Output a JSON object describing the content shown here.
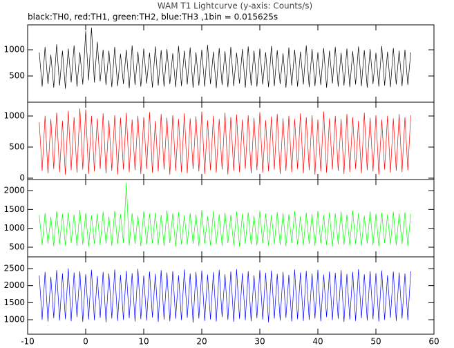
{
  "chart_data": {
    "type": "line",
    "title": "WAM T1 Lightcurve (y-axis: Counts/s)",
    "subtitle": "black:TH0, red:TH1, green:TH2, blue:TH3 ,1bin = 0.015625s",
    "x": [
      -8,
      -7.5,
      -7,
      -6.5,
      -6,
      -5.5,
      -5,
      -4.5,
      -4,
      -3.5,
      -3,
      -2.5,
      -2,
      -1.5,
      -1,
      -0.5,
      0,
      0.5,
      1,
      1.5,
      2,
      2.5,
      3,
      3.5,
      4,
      4.5,
      5,
      5.5,
      6,
      6.5,
      7,
      7.5,
      8,
      8.5,
      9,
      9.5,
      10,
      10.5,
      11,
      11.5,
      12,
      12.5,
      13,
      13.5,
      14,
      14.5,
      15,
      15.5,
      16,
      16.5,
      17,
      17.5,
      18,
      18.5,
      19,
      19.5,
      20,
      20.5,
      21,
      21.5,
      22,
      22.5,
      23,
      23.5,
      24,
      24.5,
      25,
      25.5,
      26,
      26.5,
      27,
      27.5,
      28,
      28.5,
      29,
      29.5,
      30,
      30.5,
      31,
      31.5,
      32,
      32.5,
      33,
      33.5,
      34,
      34.5,
      35,
      35.5,
      36,
      36.5,
      37,
      37.5,
      38,
      38.5,
      39,
      39.5,
      40,
      40.5,
      41,
      41.5,
      42,
      42.5,
      43,
      43.5,
      44,
      44.5,
      45,
      45.5,
      46,
      46.5,
      47,
      47.5,
      48,
      48.5,
      49,
      49.5,
      50,
      50.5,
      51,
      51.5,
      52,
      52.5,
      53,
      53.5,
      54,
      54.5,
      55,
      55.5,
      56
    ],
    "xlim": [
      -10,
      60
    ],
    "xticks": [
      -10,
      0,
      10,
      20,
      30,
      40,
      50,
      60
    ],
    "series": [
      {
        "color": "#000000",
        "ylim": [
          0,
          1475
        ],
        "yticks": [
          500,
          1000
        ],
        "values": [
          950,
          300,
          1050,
          350,
          900,
          280,
          1100,
          320,
          980,
          260,
          1020,
          380,
          1080,
          300,
          950,
          340,
          1350,
          420,
          1420,
          380,
          1150,
          400,
          1000,
          330,
          980,
          290,
          1050,
          310,
          920,
          350,
          1000,
          270,
          1080,
          330,
          960,
          300,
          1020,
          360,
          940,
          280,
          1060,
          320,
          990,
          300,
          1010,
          350,
          930,
          290,
          1070,
          310,
          980,
          340,
          1040,
          280,
          950,
          320,
          1000,
          300,
          1090,
          350,
          960,
          270,
          1030,
          330,
          970,
          290,
          1050,
          310,
          940,
          360,
          1010,
          280,
          1060,
          320,
          980,
          300,
          1020,
          340,
          950,
          290,
          1070,
          310,
          990,
          350,
          930,
          280,
          1040,
          320,
          1000,
          300,
          960,
          340,
          1080,
          290,
          1010,
          310,
          950,
          330,
          1030,
          280,
          980,
          360,
          1050,
          300,
          940,
          320,
          1020,
          290,
          970,
          340,
          1060,
          310,
          990,
          280,
          1010,
          350,
          940,
          300,
          1070,
          320,
          960,
          290,
          1030,
          340,
          980,
          310,
          1000,
          330,
          950
        ]
      },
      {
        "color": "#ff0000",
        "ylim": [
          -22,
          1222
        ],
        "yticks": [
          0,
          500,
          1000
        ],
        "values": [
          900,
          120,
          1000,
          80,
          950,
          150,
          1050,
          100,
          920,
          60,
          1080,
          130,
          980,
          90,
          1120,
          140,
          1100,
          70,
          1000,
          110,
          960,
          150,
          1040,
          80,
          930,
          120,
          1010,
          60,
          970,
          140,
          1050,
          100,
          940,
          130,
          1000,
          70,
          980,
          150,
          1060,
          90,
          920,
          110,
          1030,
          140,
          970,
          60,
          1010,
          120,
          950,
          100,
          1040,
          80,
          960,
          150,
          990,
          110,
          1070,
          70,
          930,
          130,
          1000,
          90,
          950,
          140,
          1050,
          60,
          980,
          120,
          1020,
          100,
          940,
          150,
          1010,
          80,
          970,
          130,
          1060,
          90,
          930,
          110,
          990,
          140,
          1030,
          70,
          960,
          120,
          1000,
          100,
          950,
          150,
          1040,
          80,
          980,
          130,
          1010,
          60,
          940,
          110,
          1070,
          90,
          960,
          140,
          1000,
          120,
          950,
          70,
          1030,
          100,
          980,
          150,
          920,
          80,
          1050,
          130,
          970,
          110,
          1010,
          60,
          940,
          140,
          1000,
          90,
          960,
          120,
          1030,
          100,
          980,
          130,
          1010
        ]
      },
      {
        "color": "#00ff00",
        "ylim": [
          244,
          2293
        ],
        "yticks": [
          500,
          1000,
          1500,
          2000
        ],
        "values": [
          1350,
          560,
          1400,
          600,
          1300,
          530,
          1450,
          580,
          1380,
          550,
          1420,
          610,
          1360,
          540,
          1480,
          570,
          1400,
          520,
          1340,
          590,
          1390,
          560,
          1440,
          600,
          1310,
          540,
          1460,
          580,
          1370,
          620,
          2200,
          550,
          1400,
          590,
          1330,
          530,
          1450,
          570,
          1380,
          600,
          1410,
          560,
          1350,
          540,
          1470,
          610,
          1390,
          520,
          1430,
          580,
          1340,
          570,
          1400,
          600,
          1360,
          530,
          1480,
          590,
          1320,
          550,
          1450,
          580,
          1370,
          540,
          1410,
          610,
          1350,
          560,
          1440,
          520,
          1380,
          590,
          1420,
          570,
          1330,
          550,
          1460,
          600,
          1390,
          540,
          1350,
          580,
          1430,
          560,
          1400,
          530,
          1370,
          610,
          1450,
          570,
          1320,
          550,
          1410,
          590,
          1380,
          540,
          1460,
          600,
          1340,
          560,
          1420,
          520,
          1390,
          580,
          1440,
          570,
          1360,
          550,
          1470,
          590,
          1400,
          540,
          1330,
          600,
          1450,
          560,
          1380,
          530,
          1410,
          610,
          1360,
          570,
          1440,
          550,
          1390,
          590,
          1420,
          540,
          1380
        ]
      },
      {
        "color": "#0000ff",
        "ylim": [
          575,
          2844
        ],
        "yticks": [
          1000,
          1500,
          2000,
          2500
        ],
        "values": [
          2300,
          1000,
          2400,
          950,
          2250,
          1050,
          2450,
          980,
          2350,
          1020,
          2500,
          960,
          2380,
          1080,
          2420,
          940,
          2330,
          1010,
          2460,
          990,
          2280,
          1060,
          2400,
          930,
          2350,
          1040,
          2470,
          970,
          2310,
          1000,
          2430,
          1050,
          2360,
          950,
          2490,
          1020,
          2290,
          980,
          2410,
          1070,
          2340,
          940,
          2450,
          1010,
          2380,
          960,
          2420,
          1030,
          2300,
          990,
          2470,
          1060,
          2350,
          920,
          2400,
          1040,
          2440,
          970,
          2320,
          1010,
          2390,
          950,
          2460,
          1080,
          2330,
          1000,
          2410,
          940,
          2480,
          1030,
          2360,
          990,
          2420,
          960,
          2300,
          1050,
          2450,
          1010,
          2370,
          930,
          2440,
          1040,
          2340,
          980,
          2400,
          1060,
          2310,
          950,
          2470,
          1020,
          2380,
          970,
          2430,
          1000,
          2350,
          1040,
          2460,
          960,
          2320,
          1080,
          2410,
          990,
          2370,
          1030,
          2450,
          940,
          2340,
          1010,
          2400,
          970,
          2480,
          1050,
          2330,
          980,
          2420,
          1020,
          2360,
          950,
          2440,
          1000,
          2300,
          1060,
          2410,
          970,
          2380,
          1040,
          2350,
          990,
          2420
        ]
      }
    ]
  }
}
